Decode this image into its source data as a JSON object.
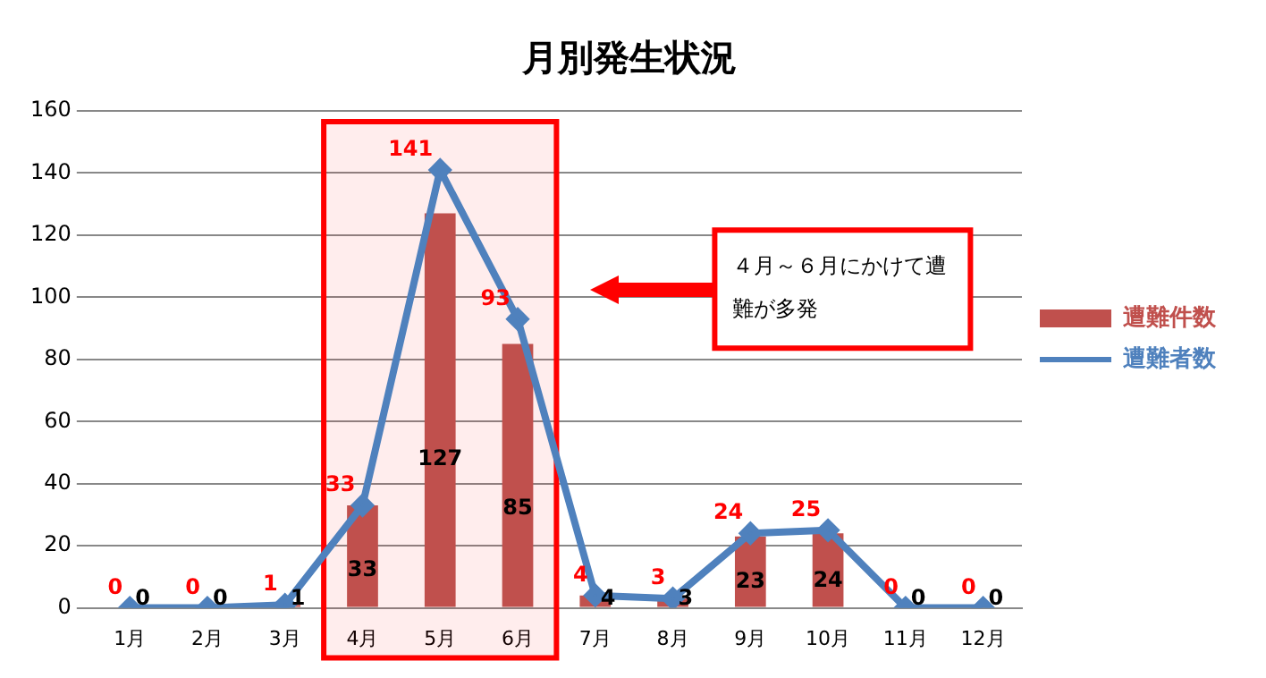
{
  "chart_data": {
    "type": "bar",
    "title": "月別発生状況",
    "categories": [
      "1月",
      "2月",
      "3月",
      "4月",
      "5月",
      "6月",
      "7月",
      "8月",
      "9月",
      "10月",
      "11月",
      "12月"
    ],
    "series": [
      {
        "name": "遭難件数",
        "color": "#c0504d",
        "values": [
          0,
          0,
          1,
          33,
          127,
          85,
          4,
          3,
          23,
          24,
          0,
          0
        ]
      },
      {
        "name": "遭難者数",
        "type": "line",
        "color": "#4f81bd",
        "marker": "diamond",
        "values": [
          0,
          0,
          1,
          33,
          141,
          93,
          4,
          3,
          24,
          25,
          0,
          0
        ]
      }
    ],
    "ylim": [
      0,
      160
    ],
    "yticks": [
      0,
      20,
      40,
      60,
      80,
      100,
      120,
      140,
      160
    ],
    "grid": "y",
    "legend": "right",
    "data_labels": true,
    "bands": [
      {
        "axis": "x",
        "from": "4月",
        "to": "6月",
        "color": "#ff0000"
      }
    ],
    "annotations": [
      "４月～６月にかけて遭難が多発"
    ]
  }
}
